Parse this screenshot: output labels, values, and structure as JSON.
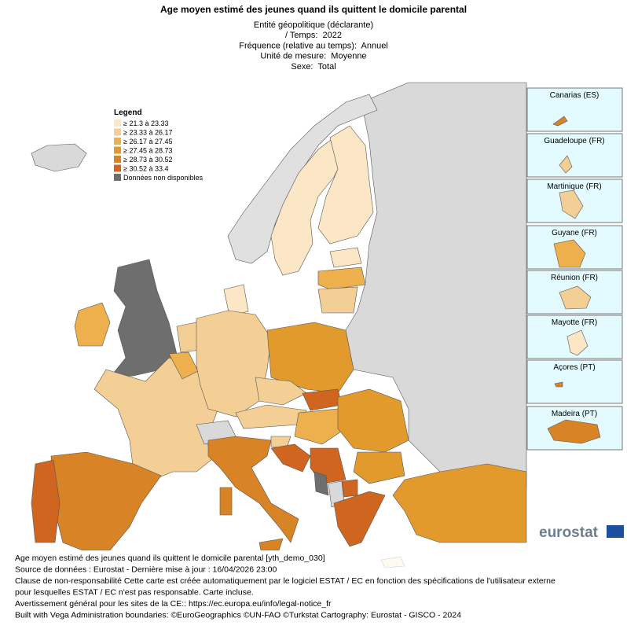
{
  "header": {
    "title": "Age moyen estimé des jeunes quand ils quittent le domicile parental",
    "subtitle": [
      "Entité géopolitique (déclarante)",
      "/ Temps:  2022",
      "Fréquence (relative au temps):  Annuel",
      "Unité de mesure:  Moyenne",
      "Sexe:  Total"
    ]
  },
  "legend": {
    "title": "Legend",
    "items": [
      {
        "label": "≥ 21.3 à 23.33",
        "color": "#fbe6c6"
      },
      {
        "label": "≥ 23.33 à 26.17",
        "color": "#f3cf95"
      },
      {
        "label": "≥ 26.17 à 27.45",
        "color": "#edb04c"
      },
      {
        "label": "≥ 27.45 à 28.73",
        "color": "#e39a2d"
      },
      {
        "label": "≥ 28.73 à 30.52",
        "color": "#d98327"
      },
      {
        "label": "≥ 30.52 à 33.4",
        "color": "#d0651f"
      },
      {
        "label": "Données non disponibles",
        "color": "#6e6e6e"
      }
    ]
  },
  "insets": [
    "Canarias (ES)",
    "Guadeloupe (FR)",
    "Martinique (FR)",
    "Guyane (FR)",
    "Réunion (FR)",
    "Mayotte (FR)",
    "Açores (PT)",
    "Madeira (PT)"
  ],
  "logo": "eurostat",
  "footer": [
    "Age moyen estimé des jeunes quand ils quittent le domicile parental [yth_demo_030]",
    "Source de données : Eurostat - Dernière mise à jour : 16/04/2026 23:00",
    "Clause de non-responsabilité Cette carte est créée automatiquement par le logiciel ESTAT / EC en fonction des spécifications de l'utilisateur externe",
    "pour lesquelles ESTAT / EC n'est pas responsable. Carte incluse.",
    "Avertissement général pour les sites de la CE:: https://ec.europa.eu/info/legal-notice_fr",
    "Built with Vega Administration boundaries: ©EuroGeographics ©UN-FAO ©Turkstat Cartography: Eurostat - GISCO - 2024"
  ]
}
